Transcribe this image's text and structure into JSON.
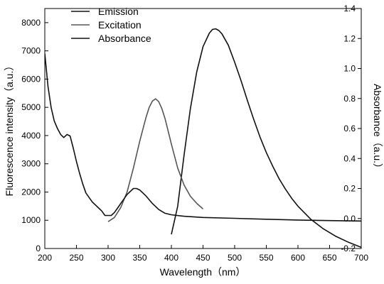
{
  "chart_data": {
    "type": "line",
    "title": "",
    "xlabel": "Wavelength（nm）",
    "ylabel": "Fluorescence intensity（a.u.）",
    "y2label": "Absorbance（a.u.）",
    "xlim": [
      200,
      700
    ],
    "ylim": [
      0,
      8500
    ],
    "y2lim": [
      -0.2,
      1.4
    ],
    "xticks": [
      "200",
      "250",
      "300",
      "350",
      "400",
      "450",
      "500",
      "550",
      "600",
      "650",
      "700"
    ],
    "yticks": [
      "0",
      "1000",
      "2000",
      "3000",
      "4000",
      "5000",
      "6000",
      "7000",
      "8000"
    ],
    "y2ticks": [
      "-0.2",
      "0.0",
      "0.2",
      "0.4",
      "0.6",
      "0.8",
      "1.0",
      "1.2",
      "1.4"
    ],
    "grid": false,
    "legend": {
      "position": "top-left"
    },
    "series": [
      {
        "name": "Emission",
        "axis": "left",
        "color": "#111111",
        "x": [
          400,
          410,
          420,
          430,
          440,
          450,
          460,
          465,
          470,
          475,
          480,
          490,
          500,
          510,
          520,
          530,
          540,
          550,
          560,
          570,
          580,
          590,
          600,
          620,
          640,
          660,
          680,
          700
        ],
        "y": [
          500,
          1500,
          3300,
          4950,
          6250,
          7150,
          7630,
          7760,
          7780,
          7720,
          7600,
          7200,
          6600,
          5950,
          5250,
          4580,
          3950,
          3400,
          2920,
          2480,
          2110,
          1780,
          1500,
          1040,
          700,
          430,
          220,
          40
        ]
      },
      {
        "name": "Excitation",
        "axis": "left",
        "color": "#555555",
        "x": [
          300,
          310,
          320,
          330,
          340,
          350,
          360,
          365,
          370,
          375,
          380,
          385,
          390,
          400,
          410,
          420,
          430,
          440,
          450
        ],
        "y": [
          950,
          1100,
          1450,
          2000,
          2850,
          3800,
          4650,
          5000,
          5220,
          5300,
          5200,
          4950,
          4600,
          3700,
          2850,
          2250,
          1850,
          1600,
          1400
        ]
      },
      {
        "name": "Absorbance",
        "axis": "right",
        "color": "#111111",
        "x": [
          200,
          205,
          210,
          215,
          220,
          225,
          230,
          235,
          240,
          245,
          250,
          255,
          260,
          265,
          270,
          275,
          280,
          285,
          290,
          295,
          300,
          305,
          310,
          315,
          320,
          330,
          340,
          345,
          350,
          360,
          370,
          380,
          390,
          400,
          420,
          450,
          500,
          550,
          600,
          650,
          700
        ],
        "y": [
          1.1,
          0.88,
          0.74,
          0.65,
          0.6,
          0.56,
          0.54,
          0.56,
          0.55,
          0.47,
          0.38,
          0.3,
          0.23,
          0.17,
          0.14,
          0.11,
          0.09,
          0.07,
          0.05,
          0.02,
          0.02,
          0.02,
          0.04,
          0.07,
          0.1,
          0.16,
          0.2,
          0.2,
          0.19,
          0.15,
          0.1,
          0.06,
          0.035,
          0.025,
          0.015,
          0.007,
          0.001,
          -0.005,
          -0.01,
          -0.014,
          -0.017
        ]
      }
    ]
  }
}
